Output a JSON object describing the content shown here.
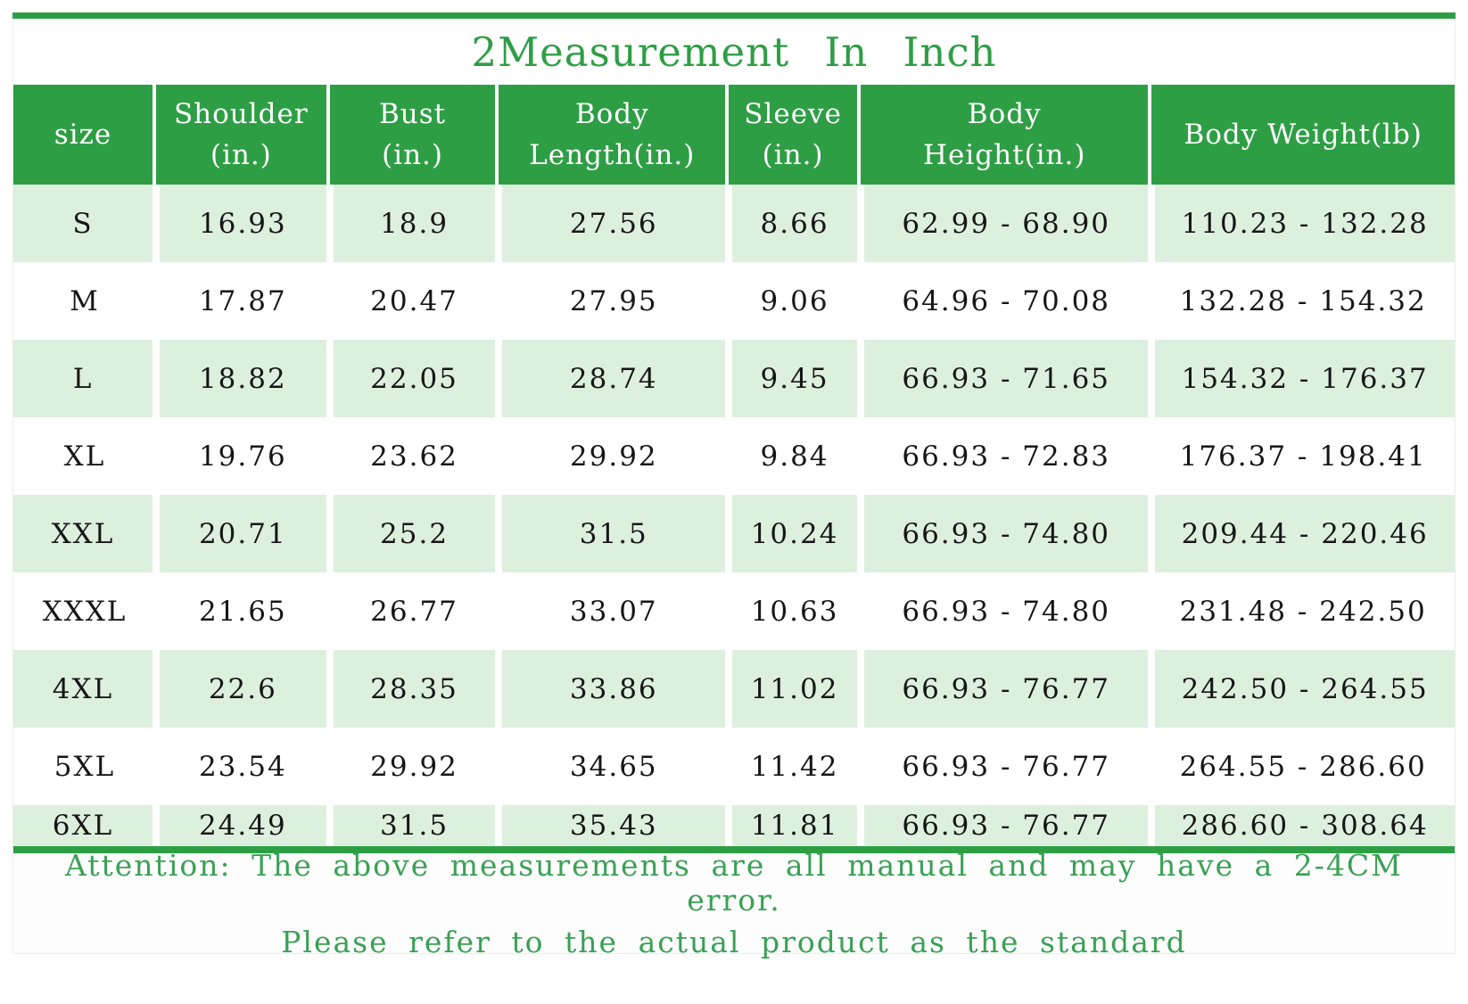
{
  "title": "2Measurement In Inch",
  "colors": {
    "header_green": "#2e9e45",
    "row_tint_green": "#ddf0de",
    "accent_text_green": "#3aa155",
    "cell_text": "#161616"
  },
  "chart_data": {
    "type": "table",
    "title": "2Measurement In Inch",
    "columns": [
      "size",
      "Shoulder\n(in.)",
      "Bust\n(in.)",
      "Body\nLength(in.)",
      "Sleeve\n(in.)",
      "Body\nHeight(in.)",
      "Body Weight(lb)"
    ],
    "rows": [
      [
        "S",
        "16.93",
        "18.9",
        "27.56",
        "8.66",
        "62.99 - 68.90",
        "110.23 - 132.28"
      ],
      [
        "M",
        "17.87",
        "20.47",
        "27.95",
        "9.06",
        "64.96 - 70.08",
        "132.28 - 154.32"
      ],
      [
        "L",
        "18.82",
        "22.05",
        "28.74",
        "9.45",
        "66.93 - 71.65",
        "154.32 - 176.37"
      ],
      [
        "XL",
        "19.76",
        "23.62",
        "29.92",
        "9.84",
        "66.93 - 72.83",
        "176.37 - 198.41"
      ],
      [
        "XXL",
        "20.71",
        "25.2",
        "31.5",
        "10.24",
        "66.93 - 74.80",
        "209.44 - 220.46"
      ],
      [
        "XXXL",
        "21.65",
        "26.77",
        "33.07",
        "10.63",
        "66.93 - 74.80",
        "231.48 - 242.50"
      ],
      [
        "4XL",
        "22.6",
        "28.35",
        "33.86",
        "11.02",
        "66.93 - 76.77",
        "242.50 - 264.55"
      ],
      [
        "5XL",
        "23.54",
        "29.92",
        "34.65",
        "11.42",
        "66.93 - 76.77",
        "264.55 - 286.60"
      ],
      [
        "6XL",
        "24.49",
        "31.5",
        "35.43",
        "11.81",
        "66.93 - 76.77",
        "286.60 - 308.64"
      ]
    ]
  },
  "footer": {
    "line1": "Attention: The above measurements are all manual and may have a 2-4CM error.",
    "line2": "Please refer to the actual product as the standard"
  }
}
